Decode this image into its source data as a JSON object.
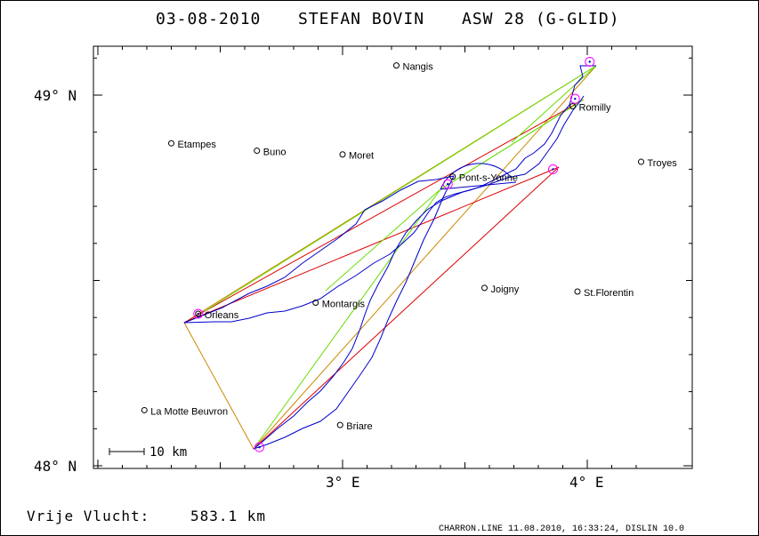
{
  "header": {
    "date": "03-08-2010",
    "pilot": "STEFAN BOVIN",
    "glider": "ASW 28 (G-GLID)"
  },
  "axes": {
    "lat_labels": [
      "49° N",
      "48° N"
    ],
    "lon_labels": [
      "3° E",
      "4° E"
    ],
    "lon_range": [
      2.0,
      4.45
    ],
    "lat_range": [
      48.0,
      49.13
    ]
  },
  "places": [
    {
      "name": "Nangis",
      "lon": 3.22,
      "lat": 49.08
    },
    {
      "name": "Romilly",
      "lon": 3.94,
      "lat": 48.97
    },
    {
      "name": "Etampes",
      "lon": 2.3,
      "lat": 48.87
    },
    {
      "name": "Buno",
      "lon": 2.65,
      "lat": 48.85
    },
    {
      "name": "Moret",
      "lon": 3.0,
      "lat": 48.84
    },
    {
      "name": "Troyes",
      "lon": 4.22,
      "lat": 48.82
    },
    {
      "name": "Pont-s-Yonne",
      "lon": 3.45,
      "lat": 48.78
    },
    {
      "name": "Joigny",
      "lon": 3.58,
      "lat": 48.48
    },
    {
      "name": "St.Florentin",
      "lon": 3.96,
      "lat": 48.47
    },
    {
      "name": "Montargis",
      "lon": 2.89,
      "lat": 48.44
    },
    {
      "name": "Orleans",
      "lon": 2.41,
      "lat": 48.41
    },
    {
      "name": "La Motte Beuvron",
      "lon": 2.19,
      "lat": 48.15
    },
    {
      "name": "Briare",
      "lon": 2.99,
      "lat": 48.11
    }
  ],
  "turnpoints": [
    {
      "lon": 4.01,
      "lat": 49.09
    },
    {
      "lon": 3.95,
      "lat": 48.99
    },
    {
      "lon": 3.86,
      "lat": 48.8
    },
    {
      "lon": 3.43,
      "lat": 48.76
    },
    {
      "lon": 2.41,
      "lat": 48.41
    },
    {
      "lon": 2.66,
      "lat": 48.05
    }
  ],
  "scale_label": "10 km",
  "footer": {
    "label": "Vrije Vlucht:",
    "distance": "583.1 km",
    "credit": "CHARRON.LINE 11.08.2010, 16:33:24, DISLIN 10.0"
  },
  "colors": {
    "track": "#0000cc",
    "leg_green": "#66dd00",
    "leg_red": "#dd0000",
    "leg_orange": "#cc8800",
    "turnpoint": "#ff00ff"
  }
}
